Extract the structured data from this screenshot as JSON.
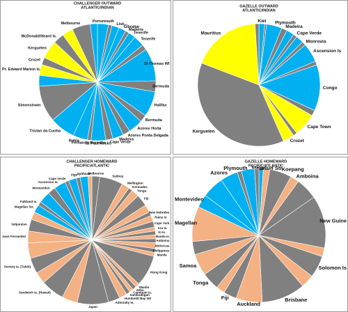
{
  "chart_data": [
    {
      "type": "pie",
      "title": "CHALLENGER OUTWARD",
      "subtitle": "ATLANTIC/INDIAN",
      "categories": [
        "Portsmouth",
        null,
        "Lisb...",
        "Gibraltar",
        "Madeira",
        "Tenerife",
        "Tenerife",
        null,
        "St Thomas WI",
        "Bermuda",
        "Halifax",
        "Bermuda",
        "Azores Horta",
        "Azores Ponta Delgada",
        "Madeira",
        "Cape Verde",
        "St Paul Rocks",
        "Fernando Noronha",
        "Bahia",
        "Tristan da Cunha",
        "Simonstown",
        null,
        "Pr. Edward Marion Is.",
        "Crozet",
        "Kerguelen",
        "McDonald/Heard Is.",
        null,
        "Melbourne",
        null
      ],
      "values": [
        3,
        1,
        2,
        2,
        1,
        2,
        3,
        1.5,
        9,
        3,
        7,
        2,
        4,
        2,
        3,
        2,
        4,
        1,
        4,
        7,
        10,
        3,
        3,
        2,
        5,
        3,
        3,
        5,
        2
      ],
      "colors": [
        "#00b0f0",
        "#808080",
        "#00b0f0",
        "#00b0f0",
        "#808080",
        "#00b0f0",
        "#00b0f0",
        "#808080",
        "#00b0f0",
        "#808080",
        "#00b0f0",
        "#808080",
        "#00b0f0",
        "#808080",
        "#00b0f0",
        "#808080",
        "#00b0f0",
        "#808080",
        "#00b0f0",
        "#00b0f0",
        "#808080",
        "#00b0f0",
        "#ffff00",
        "#808080",
        "#ffff00",
        "#808080",
        "#ffff00",
        "#808080",
        "#00b0f0"
      ]
    },
    {
      "type": "pie",
      "title": "GAZELLE OUTWARD",
      "subtitle": "ATLANTIC/INDIAN",
      "categories": [
        "Kiel",
        null,
        "Plymouth",
        "Madeira",
        null,
        "Cape Verde",
        null,
        "Monrovia",
        "Ascension Is",
        null,
        "Congo",
        null,
        "Cape Town",
        null,
        "Crozet",
        "Kerguelen",
        "Mauritius",
        null
      ],
      "values": [
        1.5,
        0.5,
        4,
        1.5,
        2,
        1,
        2,
        1,
        5,
        1,
        12,
        1.5,
        6,
        1,
        3,
        37,
        18,
        1
      ],
      "colors": [
        "#00b0f0",
        "#808080",
        "#00b0f0",
        "#808080",
        "#00b0f0",
        "#808080",
        "#00b0f0",
        "#808080",
        "#00b0f0",
        "#808080",
        "#00b0f0",
        "#808080",
        "#ffff00",
        "#808080",
        "#ffff00",
        "#808080",
        "#ffff00",
        "#808080"
      ]
    },
    {
      "type": "pie",
      "title": "CHALLENGER HOMEWARD",
      "subtitle": "PACIFIC/ATLANTIC",
      "categories": [
        "Melbourne",
        "Sydney",
        "Wellington",
        "Kermadec",
        "Tonga",
        "Fiji",
        null,
        "New Hebrides",
        "Raine Is",
        "Cape York",
        "Aru Is.",
        "Ki Is.",
        "Banda Is.",
        "Amboina",
        "Moluccas",
        "Philippines",
        "Manila",
        "Hong Kong",
        "Manila",
        "Zebu",
        "Camiguin Is.",
        "Samboangan",
        "Humboldt Bay NG",
        "Admiralty Is.",
        "Japan",
        null,
        "Sandwich Is. (Hawaii)",
        null,
        "Society Is. (Tahiti)",
        null,
        "Juan Fernandez",
        "Valparaiso",
        null,
        "Magellan Str.",
        "Falkland Is.",
        null,
        "Montevideo",
        "Ascension Is.",
        "Cape Verde",
        null,
        "Vigo",
        "Spithead",
        null
      ],
      "values": [
        2,
        6,
        2,
        1,
        2,
        3,
        2,
        1,
        1.5,
        1.5,
        1,
        1,
        1,
        1,
        1.5,
        1,
        1,
        8,
        1,
        1,
        1,
        1,
        2,
        3,
        8,
        4,
        6,
        3,
        4,
        4,
        3,
        3,
        2,
        2,
        1,
        3,
        2,
        3,
        1,
        2,
        1,
        2,
        1
      ],
      "colors": [
        "#808080",
        "#808080",
        "#f4b183",
        "#808080",
        "#f4b183",
        "#808080",
        "#f4b183",
        "#808080",
        "#f4b183",
        "#808080",
        "#f4b183",
        "#808080",
        "#f4b183",
        "#808080",
        "#f4b183",
        "#808080",
        "#f4b183",
        "#808080",
        "#f4b183",
        "#808080",
        "#f4b183",
        "#808080",
        "#f4b183",
        "#808080",
        "#808080",
        "#f4b183",
        "#808080",
        "#f4b183",
        "#808080",
        "#f4b183",
        "#f4b183",
        "#808080",
        "#f4b183",
        "#00b0f0",
        "#808080",
        "#00b0f0",
        "#808080",
        "#00b0f0",
        "#808080",
        "#00b0f0",
        "#808080",
        "#00b0f0",
        "#f4b183"
      ]
    },
    {
      "type": "pie",
      "title": "GAZELLE HOMEWARD",
      "subtitle": "PACIFIC/ATLANTIC",
      "categories": [
        "Kiel",
        "Mermaid Str",
        "Koepang",
        "Amboina",
        null,
        "New Guine",
        null,
        "Solomon Is",
        null,
        "Brisbane",
        "Auckland",
        "Fiji",
        null,
        "Tonga",
        "Samoa",
        null,
        "Magellan",
        "Montevideo",
        null,
        "Azores",
        null,
        "Plymouth",
        null
      ],
      "values": [
        1,
        1.5,
        5,
        2,
        5,
        12,
        2,
        5,
        3,
        10,
        6,
        3,
        2,
        4,
        5,
        3,
        8,
        3,
        5,
        4,
        1,
        3,
        1
      ],
      "colors": [
        "#00b0f0",
        "#f4b183",
        "#808080",
        "#f4b183",
        "#808080",
        "#808080",
        "#f4b183",
        "#808080",
        "#f4b183",
        "#808080",
        "#f4b183",
        "#808080",
        "#f4b183",
        "#808080",
        "#f4b183",
        "#808080",
        "#f4b183",
        "#00b0f0",
        "#00b0f0",
        "#00b0f0",
        "#808080",
        "#00b0f0",
        "#808080"
      ]
    }
  ]
}
